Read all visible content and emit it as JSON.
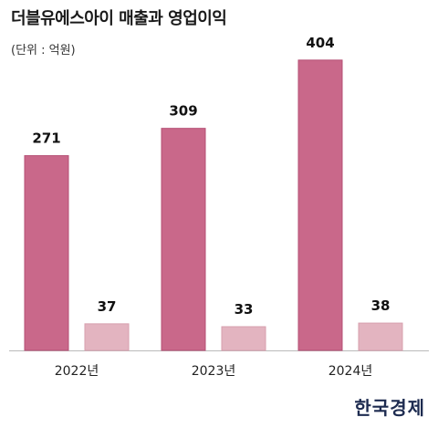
{
  "title": "더블유에스아이 매출과 영업이익",
  "unit": "(단위 : 억원)",
  "logo": "한국경제",
  "colors": {
    "revenue": "#c9688a",
    "revenue_stroke": "#b54f74",
    "profit": "#e3b4c0",
    "profit_stroke": "#d79fae",
    "axis": "#bbbbbb"
  },
  "chart_data": {
    "type": "bar",
    "title": "더블유에스아이 매출과 영업이익",
    "categories": [
      "2022년",
      "2023년",
      "2024년"
    ],
    "series": [
      {
        "values": [
          271,
          309,
          404
        ]
      },
      {
        "values": [
          37,
          33,
          38
        ]
      }
    ],
    "ylim": [
      0,
      480
    ],
    "grid": false,
    "data_labels": true
  }
}
